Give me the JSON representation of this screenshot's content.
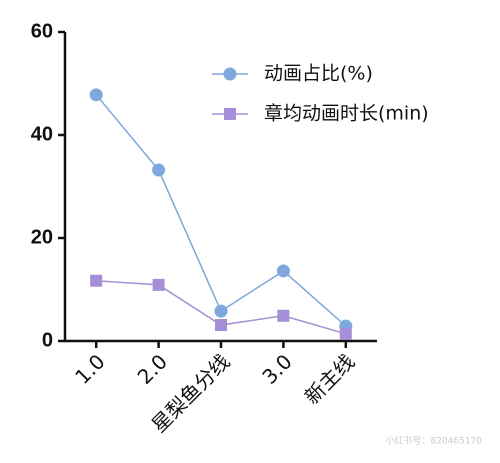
{
  "chart_data": {
    "type": "line",
    "categories": [
      "1.0",
      "2.0",
      "星梨鱼分线",
      "3.0",
      "新主线"
    ],
    "series": [
      {
        "name": "动画占比(%)",
        "color": "#7ea7dc",
        "marker": "circle",
        "values": [
          47.8,
          33.2,
          5.8,
          13.6,
          2.9
        ]
      },
      {
        "name": "章均动画时长(min)",
        "color": "#a58fd6",
        "marker": "square",
        "values": [
          11.7,
          10.9,
          3.1,
          4.9,
          1.4
        ]
      }
    ],
    "ylim": [
      0,
      60
    ],
    "yticks": [
      0,
      20,
      40,
      60
    ],
    "grid": false,
    "legend": "top-right"
  },
  "watermark": "小红书号：820465170"
}
